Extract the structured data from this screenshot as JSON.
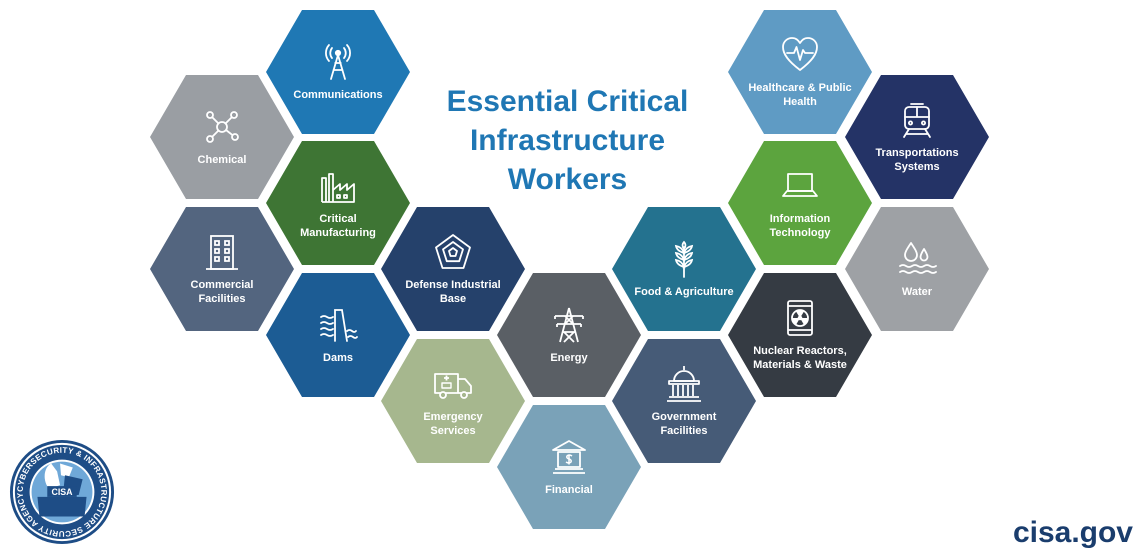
{
  "title": {
    "line1": "Essential Critical",
    "line2": "Infrastructure",
    "line3": "Workers"
  },
  "sectors": {
    "communications": {
      "label": "Communications",
      "icon": "antenna-tower-icon",
      "color": "#1f78b4"
    },
    "chemical": {
      "label": "Chemical",
      "icon": "molecule-icon",
      "color": "#9a9ea3"
    },
    "critical_manufacturing": {
      "label": "Critical Manufacturing",
      "icon": "factory-icon",
      "color": "#3e7534"
    },
    "commercial_facilities": {
      "label": "Commercial Facilities",
      "icon": "office-building-icon",
      "color": "#53657f"
    },
    "dams": {
      "label": "Dams",
      "icon": "dam-icon",
      "color": "#1c5c94"
    },
    "defense_industrial_base": {
      "label": "Defense Industrial Base",
      "icon": "pentagon-icon",
      "color": "#25416b"
    },
    "emergency_services": {
      "label": "Emergency Services",
      "icon": "ambulance-icon",
      "color": "#a6b78e"
    },
    "energy": {
      "label": "Energy",
      "icon": "power-tower-icon",
      "color": "#5a5f65"
    },
    "financial": {
      "label": "Financial",
      "icon": "bank-icon",
      "color": "#7aa2b8"
    },
    "food_agriculture": {
      "label": "Food & Agriculture",
      "icon": "wheat-icon",
      "color": "#24728f"
    },
    "government_facilities": {
      "label": "Government Facilities",
      "icon": "capitol-icon",
      "color": "#465b77"
    },
    "healthcare_public_health": {
      "label": "Healthcare & Public Health",
      "icon": "heart-pulse-icon",
      "color": "#5f9bc4"
    },
    "transportation_systems": {
      "label": "Transportations Systems",
      "icon": "train-icon",
      "color": "#243366"
    },
    "information_technology": {
      "label": "Information Technology",
      "icon": "laptop-icon",
      "color": "#5ca43e"
    },
    "water": {
      "label": "Water",
      "icon": "water-drops-icon",
      "color": "#9ea1a5"
    },
    "nuclear": {
      "label": "Nuclear Reactors, Materials & Waste",
      "icon": "nuclear-barrel-icon",
      "color": "#353b43"
    }
  },
  "seal": {
    "ring_text": "CYBERSECURITY & INFRASTRUCTURE SECURITY AGENCY",
    "emblem_text": "CISA"
  },
  "footer": {
    "site": "cisa.gov"
  }
}
